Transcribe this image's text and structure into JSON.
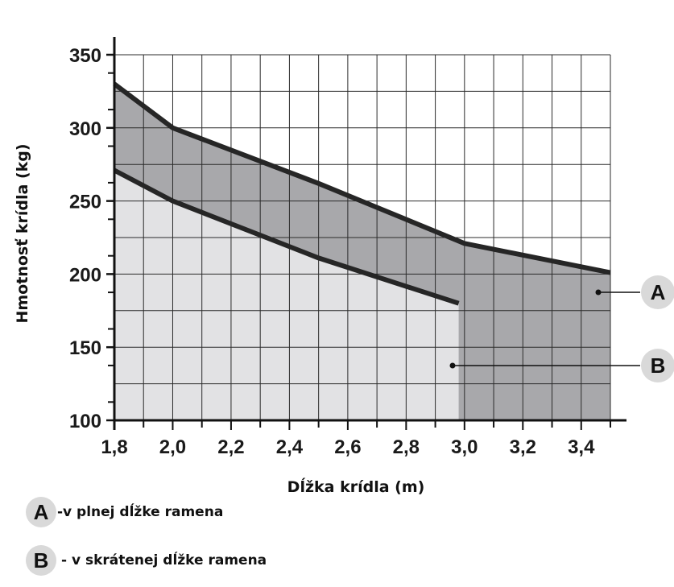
{
  "chart_data": {
    "type": "area",
    "xlabel": "Dĺžka krídla (m)",
    "ylabel": "Hmotnosť krídla (kg)",
    "xlim": [
      1.8,
      3.5
    ],
    "ylim": [
      100,
      350
    ],
    "x_ticks": [
      1.8,
      2.0,
      2.2,
      2.4,
      2.6,
      2.8,
      3.0,
      3.2,
      3.4
    ],
    "x_tick_labels": [
      "1,8",
      "2,0",
      "2,2",
      "2,4",
      "2,6",
      "2,8",
      "3,0",
      "3,2",
      "3,4"
    ],
    "y_ticks": [
      100,
      150,
      200,
      250,
      300,
      350
    ],
    "y_tick_labels": [
      "100",
      "150",
      "200",
      "250",
      "300",
      "350"
    ],
    "grid": true,
    "series": [
      {
        "name": "A",
        "color": "#a8a8ab",
        "x": [
          1.8,
          2.0,
          2.5,
          3.0,
          3.5
        ],
        "y": [
          330,
          300,
          262,
          221,
          201
        ]
      },
      {
        "name": "B",
        "color": "#e2e2e4",
        "x": [
          1.8,
          2.0,
          2.5,
          2.98
        ],
        "y": [
          271,
          250,
          211,
          180
        ]
      }
    ],
    "callouts": [
      {
        "letter": "A"
      },
      {
        "letter": "B"
      }
    ]
  },
  "legend": [
    {
      "badge": "A",
      "text": "-v plnej dĺžke ramena"
    },
    {
      "badge": "B",
      "text": "- v skrátenej dĺžke ramena"
    }
  ]
}
